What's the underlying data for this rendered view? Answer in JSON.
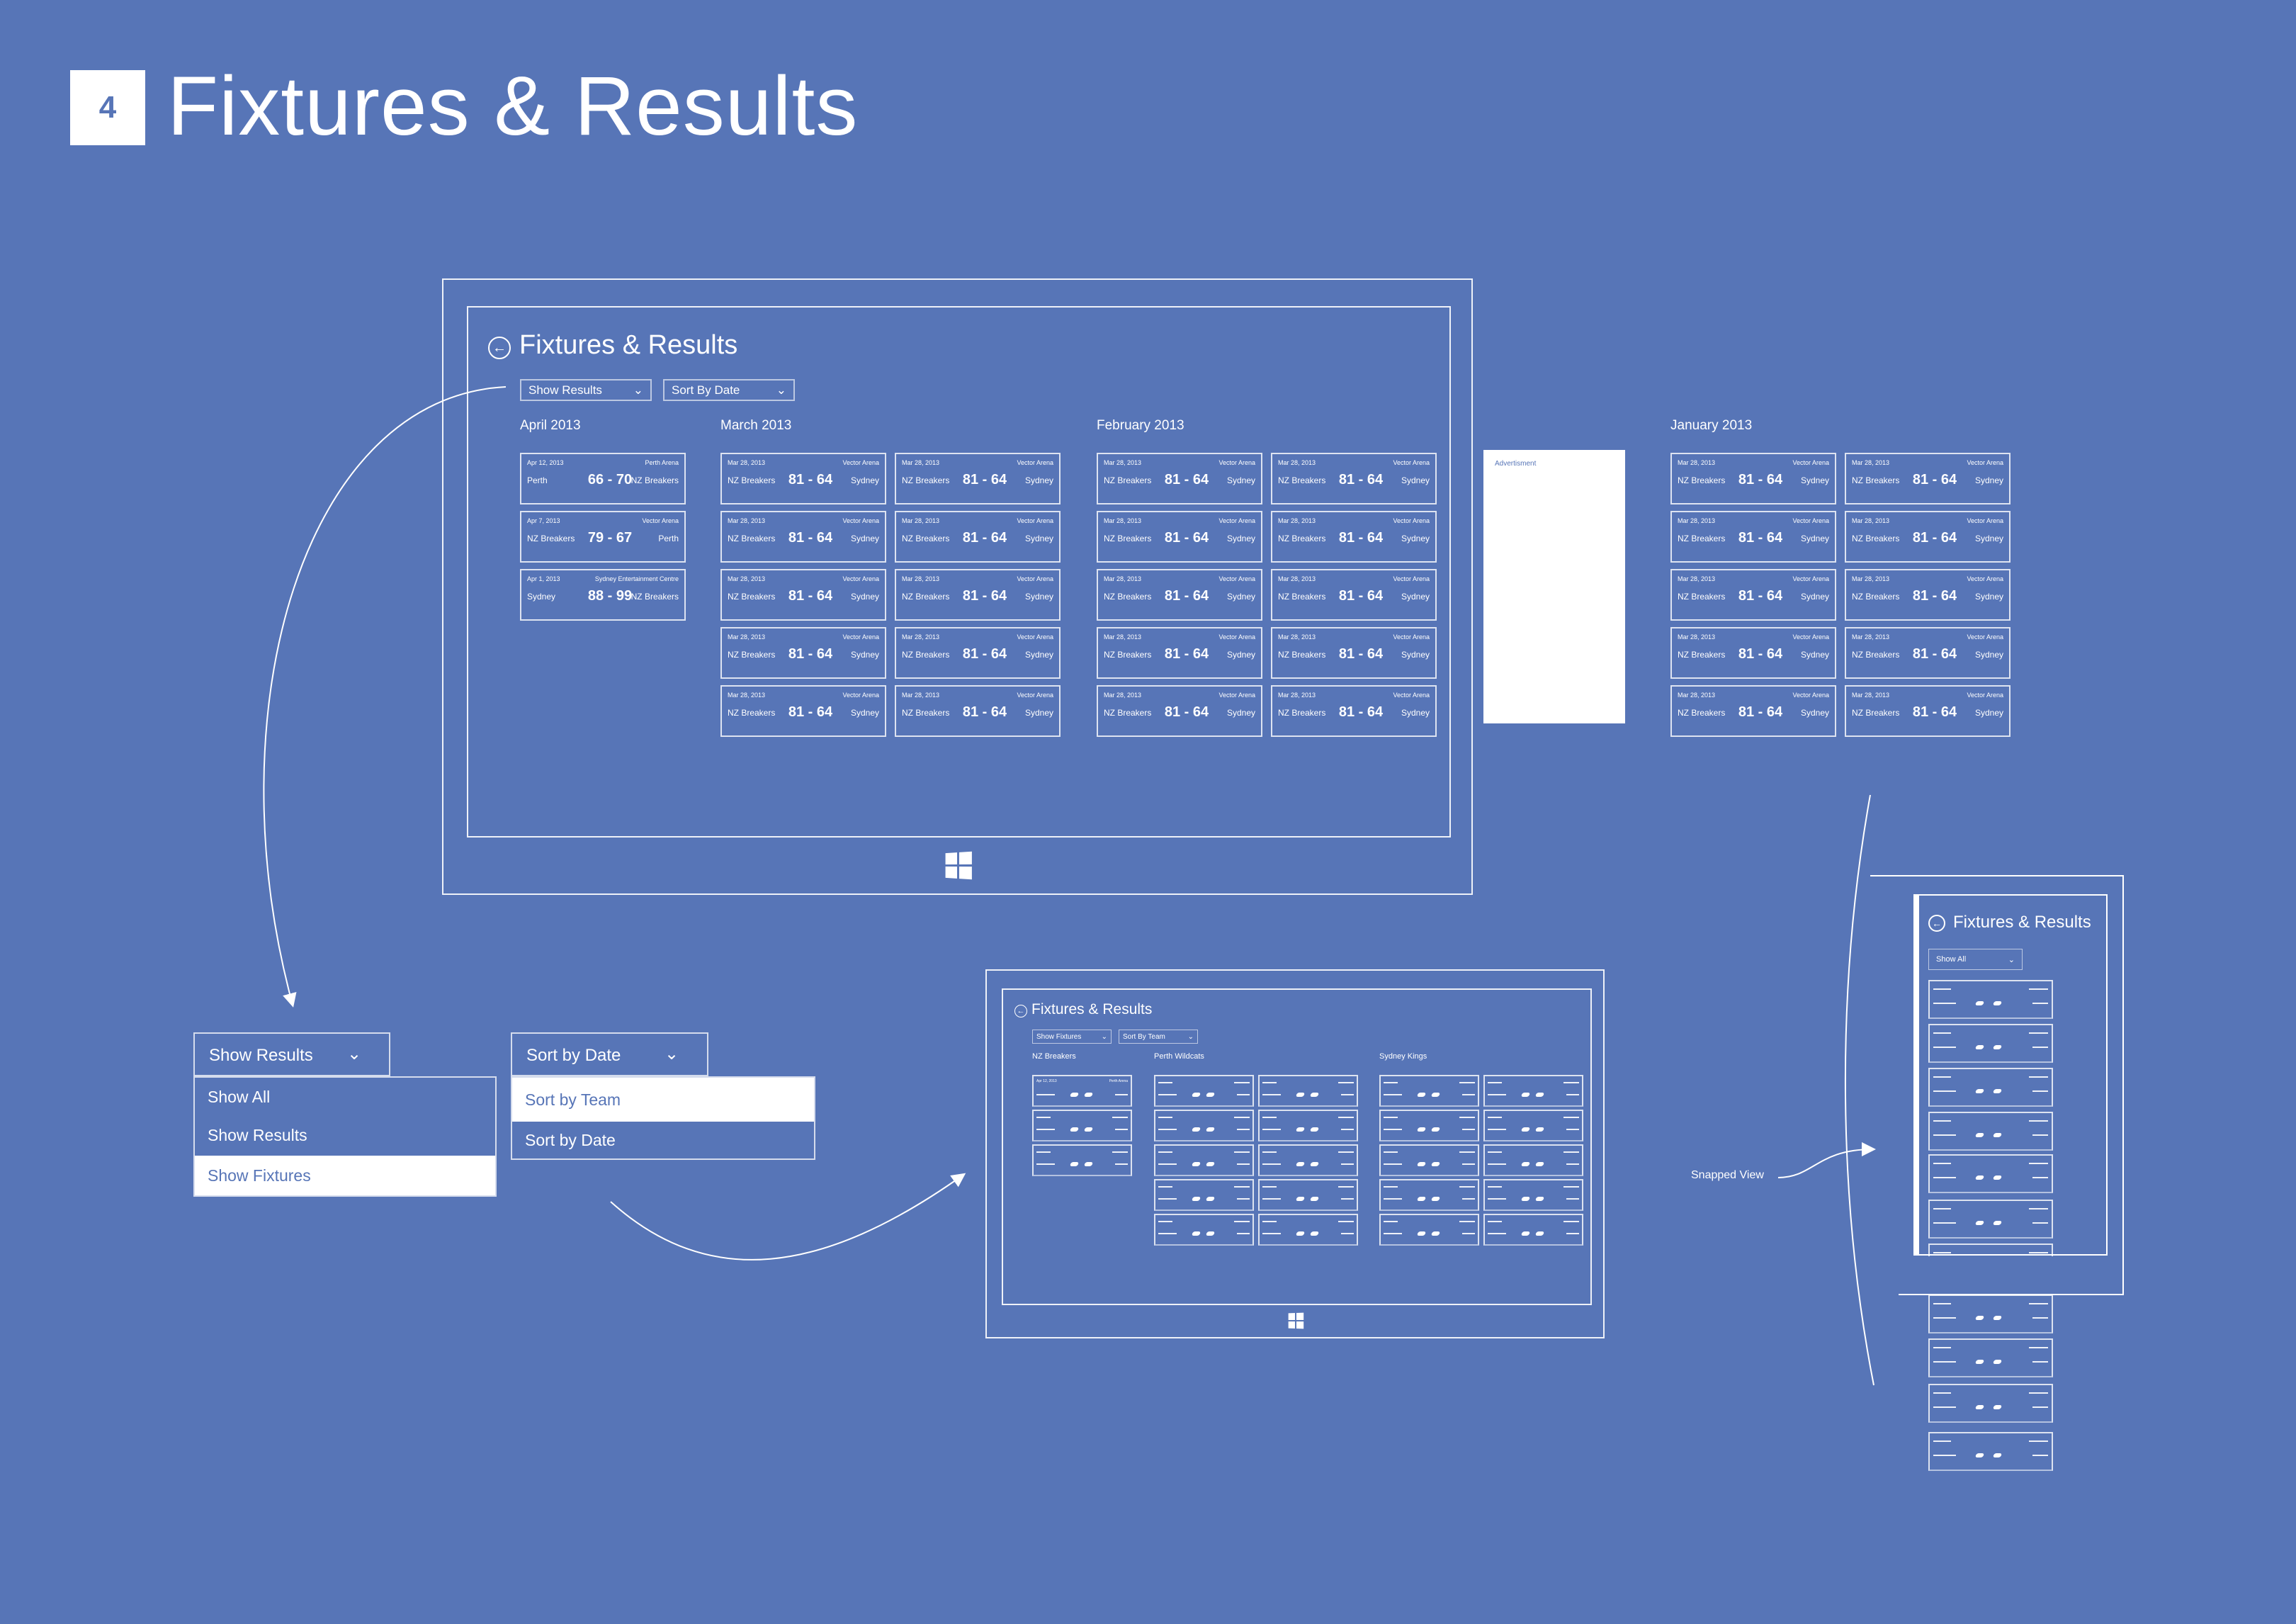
{
  "header": {
    "step_number": "4",
    "title": "Fixtures & Results"
  },
  "colors": {
    "background": "#5775b7",
    "foreground": "#ffffff"
  },
  "main_view": {
    "title": "Fixtures & Results",
    "back_icon": "back-arrow-circle-icon",
    "filter_dropdown": "Show Results",
    "sort_dropdown": "Sort By Date",
    "advertisement_label": "Advertisment",
    "groups": [
      {
        "label": "April 2013",
        "cards": [
          {
            "date": "Apr 12, 2013",
            "venue": "Perth Arena",
            "home": "Perth",
            "score": "66 - 70",
            "away": "NZ Breakers"
          },
          {
            "date": "Apr 7, 2013",
            "venue": "Vector Arena",
            "home": "NZ Breakers",
            "score": "79 - 67",
            "away": "Perth"
          },
          {
            "date": "Apr 1, 2013",
            "venue": "Sydney Entertainment Centre",
            "home": "Sydney",
            "score": "88 - 99",
            "away": "NZ Breakers"
          }
        ]
      },
      {
        "label": "March 2013",
        "cards": [
          {
            "date": "Mar 28, 2013",
            "venue": "Vector Arena",
            "home": "NZ Breakers",
            "score": "81 - 64",
            "away": "Sydney"
          },
          {
            "date": "Mar 28, 2013",
            "venue": "Vector Arena",
            "home": "NZ Breakers",
            "score": "81 - 64",
            "away": "Sydney"
          },
          {
            "date": "Mar 28, 2013",
            "venue": "Vector Arena",
            "home": "NZ Breakers",
            "score": "81 - 64",
            "away": "Sydney"
          },
          {
            "date": "Mar 28, 2013",
            "venue": "Vector Arena",
            "home": "NZ Breakers",
            "score": "81 - 64",
            "away": "Sydney"
          },
          {
            "date": "Mar 28, 2013",
            "venue": "Vector Arena",
            "home": "NZ Breakers",
            "score": "81 - 64",
            "away": "Sydney"
          },
          {
            "date": "Mar 28, 2013",
            "venue": "Vector Arena",
            "home": "NZ Breakers",
            "score": "81 - 64",
            "away": "Sydney"
          },
          {
            "date": "Mar 28, 2013",
            "venue": "Vector Arena",
            "home": "NZ Breakers",
            "score": "81 - 64",
            "away": "Sydney"
          },
          {
            "date": "Mar 28, 2013",
            "venue": "Vector Arena",
            "home": "NZ Breakers",
            "score": "81 - 64",
            "away": "Sydney"
          },
          {
            "date": "Mar 28, 2013",
            "venue": "Vector Arena",
            "home": "NZ Breakers",
            "score": "81 - 64",
            "away": "Sydney"
          },
          {
            "date": "Mar 28, 2013",
            "venue": "Vector Arena",
            "home": "NZ Breakers",
            "score": "81 - 64",
            "away": "Sydney"
          }
        ]
      },
      {
        "label": "February 2013",
        "cards": [
          {
            "date": "Mar 28, 2013",
            "venue": "Vector Arena",
            "home": "NZ Breakers",
            "score": "81 - 64",
            "away": "Sydney"
          },
          {
            "date": "Mar 28, 2013",
            "venue": "Vector Arena",
            "home": "NZ Breakers",
            "score": "81 - 64",
            "away": "Sydney"
          },
          {
            "date": "Mar 28, 2013",
            "venue": "Vector Arena",
            "home": "NZ Breakers",
            "score": "81 - 64",
            "away": "Sydney"
          },
          {
            "date": "Mar 28, 2013",
            "venue": "Vector Arena",
            "home": "NZ Breakers",
            "score": "81 - 64",
            "away": "Sydney"
          },
          {
            "date": "Mar 28, 2013",
            "venue": "Vector Arena",
            "home": "NZ Breakers",
            "score": "81 - 64",
            "away": "Sydney"
          },
          {
            "date": "Mar 28, 2013",
            "venue": "Vector Arena",
            "home": "NZ Breakers",
            "score": "81 - 64",
            "away": "Sydney"
          },
          {
            "date": "Mar 28, 2013",
            "venue": "Vector Arena",
            "home": "NZ Breakers",
            "score": "81 - 64",
            "away": "Sydney"
          },
          {
            "date": "Mar 28, 2013",
            "venue": "Vector Arena",
            "home": "NZ Breakers",
            "score": "81 - 64",
            "away": "Sydney"
          },
          {
            "date": "Mar 28, 2013",
            "venue": "Vector Arena",
            "home": "NZ Breakers",
            "score": "81 - 64",
            "away": "Sydney"
          },
          {
            "date": "Mar 28, 2013",
            "venue": "Vector Arena",
            "home": "NZ Breakers",
            "score": "81 - 64",
            "away": "Sydney"
          }
        ]
      },
      {
        "label": "January 2013",
        "cards": [
          {
            "date": "Mar 28, 2013",
            "venue": "Vector Arena",
            "home": "NZ Breakers",
            "score": "81 - 64",
            "away": "Sydney"
          },
          {
            "date": "Mar 28, 2013",
            "venue": "Vector Arena",
            "home": "NZ Breakers",
            "score": "81 - 64",
            "away": "Sydney"
          },
          {
            "date": "Mar 28, 2013",
            "venue": "Vector Arena",
            "home": "NZ Breakers",
            "score": "81 - 64",
            "away": "Sydney"
          },
          {
            "date": "Mar 28, 2013",
            "venue": "Vector Arena",
            "home": "NZ Breakers",
            "score": "81 - 64",
            "away": "Sydney"
          },
          {
            "date": "Mar 28, 2013",
            "venue": "Vector Arena",
            "home": "NZ Breakers",
            "score": "81 - 64",
            "away": "Sydney"
          },
          {
            "date": "Mar 28, 2013",
            "venue": "Vector Arena",
            "home": "NZ Breakers",
            "score": "81 - 64",
            "away": "Sydney"
          },
          {
            "date": "Mar 28, 2013",
            "venue": "Vector Arena",
            "home": "NZ Breakers",
            "score": "81 - 64",
            "away": "Sydney"
          },
          {
            "date": "Mar 28, 2013",
            "venue": "Vector Arena",
            "home": "NZ Breakers",
            "score": "81 - 64",
            "away": "Sydney"
          },
          {
            "date": "Mar 28, 2013",
            "venue": "Vector Arena",
            "home": "NZ Breakers",
            "score": "81 - 64",
            "away": "Sydney"
          },
          {
            "date": "Mar 28, 2013",
            "venue": "Vector Arena",
            "home": "NZ Breakers",
            "score": "81 - 64",
            "away": "Sydney"
          }
        ]
      }
    ]
  },
  "filter_menu": {
    "selected": "Show Results",
    "options": [
      {
        "label": "Show All",
        "highlighted": false
      },
      {
        "label": "Show Results",
        "highlighted": false
      },
      {
        "label": "Show Fixtures",
        "highlighted": true
      }
    ]
  },
  "sort_menu": {
    "selected": "Sort by Date",
    "options": [
      {
        "label": "Sort by Team",
        "highlighted": true
      },
      {
        "label": "Sort by Date",
        "highlighted": false
      }
    ]
  },
  "team_view": {
    "title": "Fixtures & Results",
    "filter_dropdown": "Show Fixtures",
    "sort_dropdown": "Sort By Team",
    "first_card": {
      "date": "Apr 12, 2013",
      "venue": "Perth Arena"
    },
    "groups": [
      {
        "label": "NZ Breakers",
        "card_count": 3
      },
      {
        "label": "Perth Wildcats",
        "card_count": 10
      },
      {
        "label": "Sydney Kings",
        "card_count": 10
      }
    ]
  },
  "snapped_view": {
    "caption": "Snapped View",
    "title": "Fixtures & Results",
    "filter_dropdown": "Show All",
    "card_count": 11
  }
}
